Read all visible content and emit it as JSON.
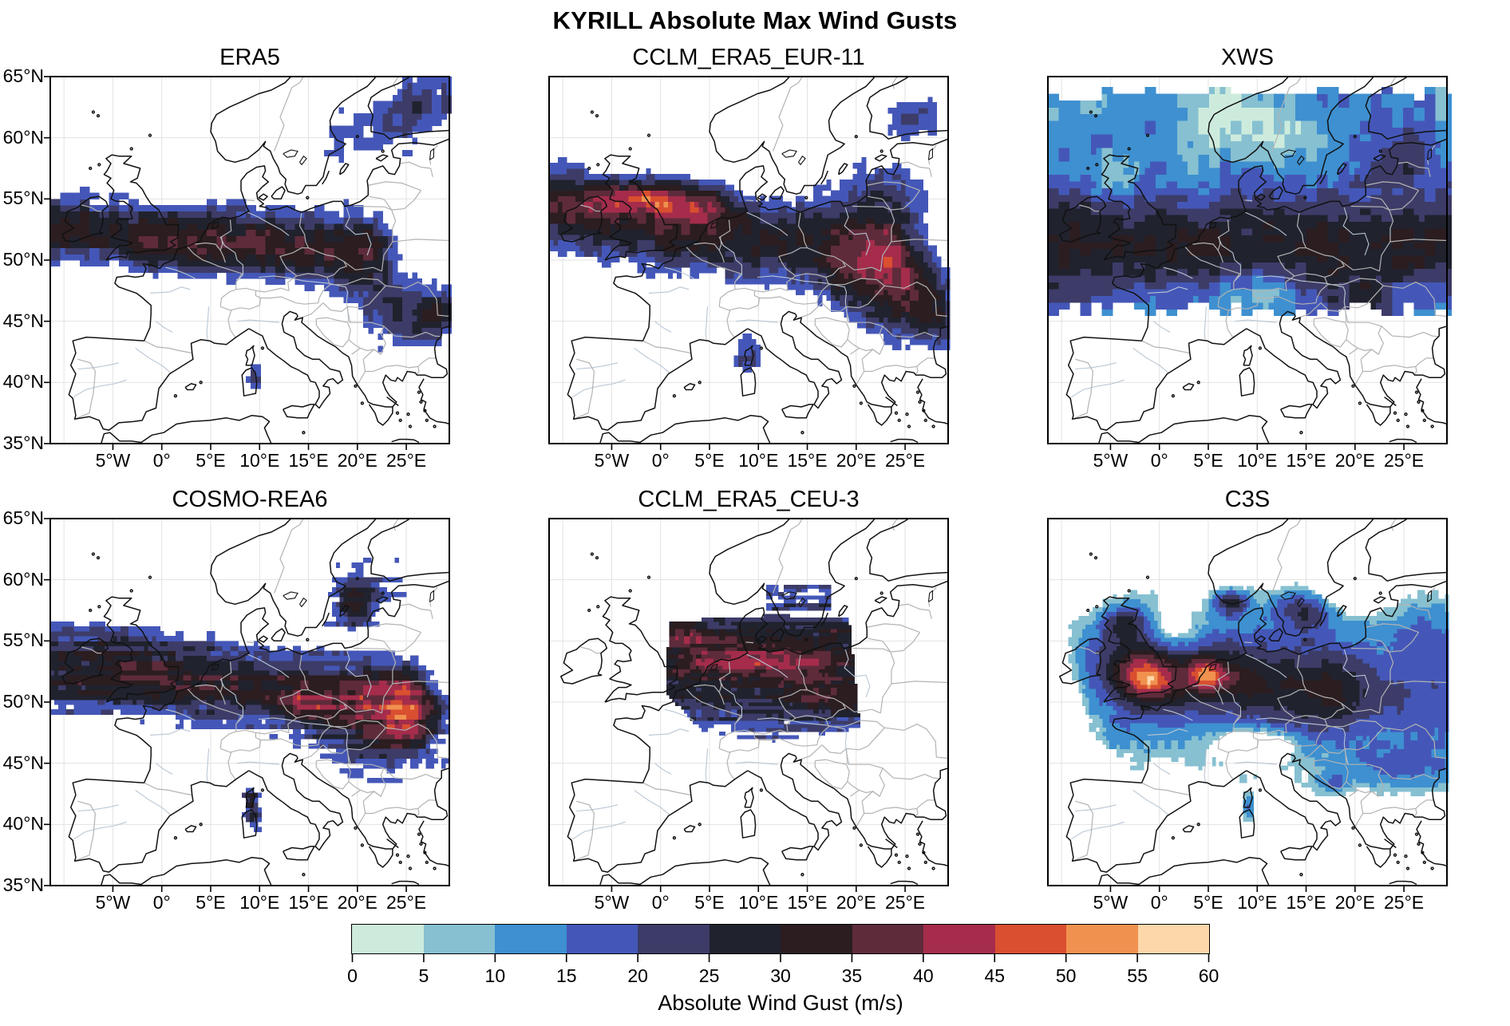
{
  "figure": {
    "title": "KYRILL Absolute Max Wind Gusts"
  },
  "axes": {
    "lat_tick_labels": [
      "65°N",
      "60°N",
      "55°N",
      "50°N",
      "45°N",
      "40°N",
      "35°N"
    ],
    "lat_tick_values": [
      65,
      60,
      55,
      50,
      45,
      40,
      35
    ],
    "lon_tick_labels": [
      "5°W",
      "0°",
      "5°E",
      "10°E",
      "15°E",
      "20°E",
      "25°E"
    ],
    "lon_tick_values": [
      -5,
      0,
      5,
      10,
      15,
      20,
      25
    ],
    "lon_range": [
      -11.4,
      29.4
    ],
    "lat_range": [
      35,
      65
    ],
    "grid": true
  },
  "colorbar": {
    "title": "Absolute Wind Gust (m/s)",
    "tick_labels": [
      "0",
      "5",
      "10",
      "15",
      "20",
      "25",
      "30",
      "35",
      "40",
      "45",
      "50",
      "55",
      "60"
    ],
    "levels": [
      0,
      5,
      10,
      15,
      20,
      25,
      30,
      35,
      40,
      45,
      50,
      55,
      60
    ],
    "colors": [
      "#cdebdd",
      "#86c0d1",
      "#3e90d0",
      "#4457b8",
      "#3d3c68",
      "#20222e",
      "#2b1d20",
      "#5e2b3b",
      "#a52c4b",
      "#d94f30",
      "#f0914f",
      "#fcd7a9"
    ]
  },
  "chart_data": {
    "type": "heatmap",
    "subtype": "gridded wind-gust maps over Europe, PlateCarree projection, 2x3 panels",
    "units": "m/s",
    "panels": [
      {
        "id": "era5",
        "title": "ERA5",
        "row": 0,
        "col": 0,
        "seed": 11,
        "summary": "Dark 25-40 m/s storm band 48-55N from Atlantic to ~20E with maroon core over France/Germany; scattered 15-25 m/s blues over SE Europe and Scandinavia.",
        "fields": [
          {
            "cell": 0.5,
            "cutoff": 15,
            "noise": {
              "amp": 7,
              "mode": "block"
            },
            "bands": [
              {
                "amp": 30,
                "lat": 51.7,
                "tilt": -0.05,
                "sigma": 2.4,
                "lon0": -11.4,
                "lon1": 21,
                "fade": 3
              }
            ],
            "blobs": [
              {
                "x": 1,
                "y": 51.2,
                "sx": 5,
                "sy": 1.5,
                "a": 5
              },
              {
                "x": 11,
                "y": 50.4,
                "sx": 3,
                "sy": 1.2,
                "a": 5
              },
              {
                "x": 24.5,
                "y": 46,
                "sx": 4.5,
                "sy": 3,
                "a": 19
              },
              {
                "x": 21,
                "y": 60.5,
                "sx": 5,
                "sy": 2.5,
                "a": 16
              },
              {
                "x": 27,
                "y": 63.2,
                "sx": 3,
                "sy": 2,
                "a": 17
              },
              {
                "x": 9.5,
                "y": 40.3,
                "sx": 0.7,
                "sy": 1,
                "a": 20
              },
              {
                "x": 28.5,
                "y": 45.5,
                "sx": 2,
                "sy": 1.5,
                "a": 18
              }
            ]
          }
        ]
      },
      {
        "id": "cclm_era5_eur11",
        "title": "CCLM_ERA5_EUR-11",
        "row": 0,
        "col": 1,
        "seed": 23,
        "summary": "Broad dark band with 40-50 m/s crimson streak from Scotland across the North Sea to Denmark; blues over Baltics and SE Europe.",
        "fields": [
          {
            "cell": 0.45,
            "cutoff": 15,
            "noise": {
              "amp": 6,
              "mode": "block"
            },
            "bands": [
              {
                "amp": 30,
                "lat": 52.3,
                "tilt": -0.1,
                "sigma": 3.0,
                "lon0": -11.4,
                "lon1": 23,
                "fade": 5
              }
            ],
            "blobs": [
              {
                "x": -2,
                "y": 55.1,
                "sx": 4.5,
                "sy": 1.1,
                "a": 22
              },
              {
                "x": -1.3,
                "y": 55.2,
                "sx": 0.6,
                "sy": 0.4,
                "a": 8
              },
              {
                "x": 4.5,
                "y": 54.2,
                "sx": 3,
                "sy": 1.1,
                "a": 9
              },
              {
                "x": 24,
                "y": 47,
                "sx": 5,
                "sy": 3.5,
                "a": 18
              },
              {
                "x": 23.5,
                "y": 56.5,
                "sx": 4,
                "sy": 2.5,
                "a": 18
              },
              {
                "x": 26,
                "y": 61.8,
                "sx": 3,
                "sy": 1.6,
                "a": 17
              },
              {
                "x": 8.8,
                "y": 42.3,
                "sx": 1.4,
                "sy": 1.8,
                "a": 24
              },
              {
                "x": 28,
                "y": 45,
                "sx": 2.5,
                "sy": 2,
                "a": 16
              }
            ]
          }
        ]
      },
      {
        "id": "xws",
        "title": "XWS",
        "row": 0,
        "col": 2,
        "seed": 37,
        "summary": "Full coverage ~46-63.5N: cyan/blue 5-20 m/s north and south, near-black 25-30 m/s band 48-55N, mint lows over Norway and the Alps.",
        "fields": [
          {
            "cell": 0.55,
            "cutoff": -99,
            "base": 13,
            "latRange": [
              45.9,
              63.6
            ],
            "noise": {
              "amp": 5,
              "mode": "block"
            },
            "bands": [
              {
                "amp": 17,
                "lat": 51.3,
                "tilt": 0,
                "sigma": 2.8,
                "lon0": -11.4,
                "lon1": 29.4,
                "fade": 1
              }
            ],
            "blobs": [
              {
                "x": 7,
                "y": 61.8,
                "sx": 3.5,
                "sy": 2.2,
                "a": -11
              },
              {
                "x": 13,
                "y": 60.3,
                "sx": 3,
                "sy": 2,
                "a": -6
              },
              {
                "x": -4.5,
                "y": 57.3,
                "sx": 2,
                "sy": 1.2,
                "a": -7
              },
              {
                "x": 9.5,
                "y": 47.2,
                "sx": 3.5,
                "sy": 1.1,
                "a": -11
              },
              {
                "x": 19,
                "y": 47,
                "sx": 3,
                "sy": 1.5,
                "a": 7
              },
              {
                "x": 24.5,
                "y": 58,
                "sx": 3,
                "sy": 2,
                "a": 8
              },
              {
                "x": -8,
                "y": 63,
                "sx": 3,
                "sy": 1.5,
                "a": -5
              }
            ]
          }
        ]
      },
      {
        "id": "cosmo_rea6",
        "title": "COSMO-REA6",
        "row": 1,
        "col": 0,
        "seed": 51,
        "summary": "Speckled dark band with maroon streaks over UK/North Sea and red spot near Czech mountains; heavy blue speckle over SE and NE Europe.",
        "fields": [
          {
            "cell": 0.4,
            "cutoff": 15,
            "noise": {
              "amp": 9,
              "mode": "streak"
            },
            "bands": [
              {
                "amp": 29,
                "lat": 51.6,
                "tilt": -0.06,
                "sigma": 2.7,
                "lon0": -11.4,
                "lon1": 24,
                "fade": 4
              }
            ],
            "blobs": [
              {
                "x": -5,
                "y": 55.2,
                "sx": 4,
                "sy": 1.2,
                "a": 8
              },
              {
                "x": 1,
                "y": 52.2,
                "sx": 5,
                "sy": 1.5,
                "a": 5
              },
              {
                "x": 14.8,
                "y": 49.6,
                "sx": 1.8,
                "sy": 0.8,
                "a": 13
              },
              {
                "x": 22,
                "y": 46.5,
                "sx": 5.5,
                "sy": 3.5,
                "a": 16
              },
              {
                "x": 22,
                "y": 61,
                "sx": 5,
                "sy": 2.5,
                "a": 13
              },
              {
                "x": 19.8,
                "y": 58,
                "sx": 1.8,
                "sy": 1.5,
                "a": 23
              },
              {
                "x": 9.4,
                "y": 40.6,
                "sx": 0.8,
                "sy": 1.3,
                "a": 22
              },
              {
                "x": 9,
                "y": 42.3,
                "sx": 0.6,
                "sy": 0.9,
                "a": 20
              },
              {
                "x": 26,
                "y": 49,
                "sx": 3,
                "sy": 2,
                "a": 15
              }
            ]
          }
        ]
      },
      {
        "id": "cclm_era5_ceu3",
        "title": "CCLM_ERA5_CEU-3",
        "row": 1,
        "col": 1,
        "seed": 67,
        "summary": "Data only inside rotated central-European domain (~0-20E, 47-57N): near-black with red streaks, blue southern fringe; streaky blues over S Sweden.",
        "fields": [
          {
            "cell": 0.3,
            "cutoff": 15,
            "noise": {
              "amp": 8,
              "mode": "streak"
            },
            "clip": [
              [
                0.9,
                56.5
              ],
              [
                6,
                56.9
              ],
              [
                12,
                57.1
              ],
              [
                19.3,
                56.8
              ],
              [
                20.4,
                47.9
              ],
              [
                15.5,
                47.3
              ],
              [
                9.5,
                46.6
              ],
              [
                4.7,
                47.3
              ],
              [
                0.5,
                50.8
              ]
            ],
            "bands": [
              {
                "amp": 29,
                "lat": 52.5,
                "tilt": -0.05,
                "sigma": 4.5,
                "lon0": -11,
                "lon1": 29,
                "fade": 1
              }
            ],
            "blobs": [
              {
                "x": 10,
                "y": 55.3,
                "sx": 8,
                "sy": 1.6,
                "a": 7
              },
              {
                "x": 6,
                "y": 53.4,
                "sx": 3,
                "sy": 0.8,
                "a": 9
              },
              {
                "x": 13.5,
                "y": 53.2,
                "sx": 4,
                "sy": 0.9,
                "a": 8
              },
              {
                "x": 16.5,
                "y": 50.4,
                "sx": 2.5,
                "sy": 0.8,
                "a": 9
              },
              {
                "x": 2.3,
                "y": 55.6,
                "sx": 1.7,
                "sy": 0.7,
                "a": 10
              },
              {
                "x": 18,
                "y": 55.8,
                "sx": 1.5,
                "sy": 0.7,
                "a": 9
              }
            ]
          },
          {
            "cell": 0.3,
            "cutoff": 16,
            "base": 18,
            "noise": {
              "amp": 12,
              "mode": "streak"
            },
            "clip": [
              [
                10.9,
                57.35
              ],
              [
                17.4,
                57.35
              ],
              [
                17.4,
                59.7
              ],
              [
                10.9,
                59.7
              ]
            ]
          }
        ]
      },
      {
        "id": "c3s",
        "title": "C3S",
        "row": 1,
        "col": 2,
        "seed": 83,
        "summary": "Smooth land field: 45-60 m/s orange/peach cores over S England and Netherlands, dark band across central Europe, blue/cyan east, white Alps gap.",
        "fields": [
          {
            "cell": 0.35,
            "cutoff": 7,
            "noise": {
              "amp": 2.5,
              "mode": "block"
            },
            "bands": [
              {
                "amp": 14,
                "lat": 52.4,
                "tilt": -0.1,
                "sigma": 2.6,
                "lon0": -7,
                "lon1": 17,
                "fade": 4
              },
              {
                "amp": 15,
                "lat": 51,
                "tilt": 0,
                "sigma": 5,
                "lon0": -2,
                "lon1": 29.4,
                "fade": 6
              }
            ],
            "blobs": [
              {
                "x": -1.3,
                "y": 52,
                "sx": 2.2,
                "sy": 1.4,
                "a": 22
              },
              {
                "x": -1,
                "y": 51.7,
                "sx": 0.9,
                "sy": 0.5,
                "a": 7
              },
              {
                "x": 4.6,
                "y": 52.3,
                "sx": 1.2,
                "sy": 0.9,
                "a": 20
              },
              {
                "x": 6.5,
                "y": 51.8,
                "sx": 2.2,
                "sy": 1,
                "a": 8
              },
              {
                "x": 7.3,
                "y": 58.2,
                "sx": 1.3,
                "sy": 0.7,
                "a": 24
              },
              {
                "x": 14.8,
                "y": 57.6,
                "sx": 2.4,
                "sy": 1.2,
                "a": 18
              },
              {
                "x": -3.5,
                "y": 56.6,
                "sx": 1.6,
                "sy": 1,
                "a": 14
              },
              {
                "x": 24,
                "y": 50,
                "sx": 6.5,
                "sy": 3.5,
                "a": 4
              },
              {
                "x": 25,
                "y": 44.5,
                "sx": 4,
                "sy": 1.5,
                "a": 10
              },
              {
                "x": 17.8,
                "y": 43.4,
                "sx": 1,
                "sy": 0.7,
                "a": 12
              },
              {
                "x": 9.1,
                "y": 41.3,
                "sx": 0.5,
                "sy": 0.9,
                "a": 13
              },
              {
                "x": 1.5,
                "y": 55.8,
                "sx": 1.8,
                "sy": 1.2,
                "a": -13
              },
              {
                "x": 9.8,
                "y": 46.6,
                "sx": 2.6,
                "sy": 0.9,
                "a": -18
              },
              {
                "x": 19,
                "y": 59.3,
                "sx": 2.5,
                "sy": 1.3,
                "a": -12
              },
              {
                "x": -10,
                "y": 52.8,
                "sx": 2.5,
                "sy": 2.5,
                "a": -9
              },
              {
                "x": 27,
                "y": 56,
                "sx": 3,
                "sy": 2,
                "a": 6
              }
            ]
          }
        ]
      }
    ]
  }
}
